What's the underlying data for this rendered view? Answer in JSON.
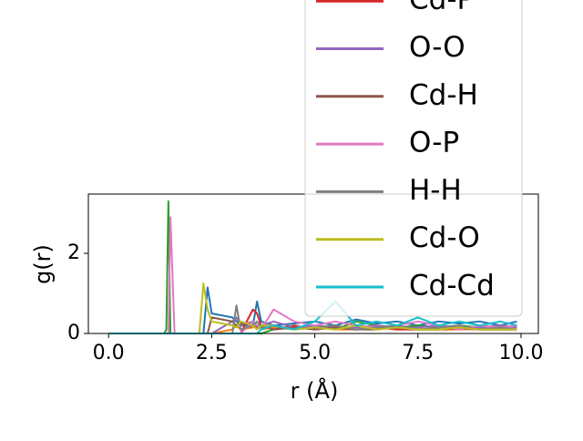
{
  "chart_data": {
    "type": "line",
    "x_label": "r (Å)",
    "y_label": "g(r)",
    "x": [
      0,
      1.3,
      1.35,
      1.4,
      1.45,
      1.5,
      1.6,
      2.1,
      2.2,
      2.3,
      2.4,
      2.5,
      3.0,
      3.1,
      3.2,
      3.5,
      3.6,
      3.7,
      4.0,
      4.5,
      5.0,
      5.5,
      6.0,
      6.5,
      7.0,
      7.5,
      8.0,
      8.5,
      9.0,
      9.5,
      9.9
    ],
    "series": [
      {
        "color": "#1f77b4",
        "values": [
          0,
          0,
          0,
          0,
          0,
          0,
          0,
          0,
          0,
          0,
          1.15,
          0.5,
          0.4,
          0.3,
          0.2,
          0.2,
          0.8,
          0.3,
          0.2,
          0.25,
          0.3,
          0.2,
          0.35,
          0.25,
          0.3,
          0.2,
          0.3,
          0.25,
          0.3,
          0.2,
          0.3
        ]
      },
      {
        "color": "#ff7f0e",
        "values": [
          0,
          0,
          0,
          0,
          0,
          0,
          0,
          0,
          0,
          0,
          0,
          0,
          0.1,
          0.2,
          0.1,
          0.15,
          0.2,
          0.1,
          0.15,
          0.1,
          0.15,
          0.1,
          0.1,
          0.15,
          0.1,
          0.12,
          0.1,
          0.1,
          0.12,
          0.1,
          0.1
        ]
      },
      {
        "color": "#2ca02c",
        "values": [
          0,
          0,
          0,
          0.1,
          3.3,
          0,
          0,
          0,
          0,
          0,
          0,
          0,
          0,
          0,
          0,
          0,
          0,
          0,
          0.1,
          0.15,
          0.2,
          0.1,
          0.3,
          0.2,
          0.15,
          0.2,
          0.15,
          0.2,
          0.15,
          0.2,
          0.15
        ]
      },
      {
        "name": "Cd-P",
        "color": "#d62728",
        "values": [
          0,
          0,
          0,
          0,
          0,
          0,
          0,
          0,
          0,
          0,
          0,
          0,
          0,
          0,
          0,
          0.6,
          0.5,
          0.2,
          0.1,
          0.2,
          0.1,
          0.15,
          0.1,
          0.15,
          0.1,
          0.1,
          0.1,
          0.12,
          0.1,
          0.1,
          0.1
        ]
      },
      {
        "name": "O-O",
        "color": "#9467bd",
        "values": [
          0,
          0,
          0,
          0,
          0,
          0,
          0,
          0,
          0,
          0,
          0,
          0,
          0.3,
          0.4,
          0.2,
          0.3,
          0.2,
          0.2,
          0.3,
          0.15,
          0.2,
          0.15,
          0.15,
          0.2,
          0.15,
          0.15,
          0.2,
          0.15,
          0.15,
          0.2,
          0.15
        ]
      },
      {
        "name": "Cd-H",
        "color": "#8c564b",
        "values": [
          0,
          0,
          0,
          0,
          0,
          0,
          0,
          0,
          0,
          0,
          0,
          0.4,
          0.3,
          0.2,
          0.25,
          0.2,
          0.15,
          0.2,
          0.1,
          0.15,
          0.1,
          0.15,
          0.1,
          0.1,
          0.15,
          0.1,
          0.1,
          0.15,
          0.1,
          0.1,
          0.1
        ]
      },
      {
        "name": "O-P",
        "color": "#e377c2",
        "values": [
          0,
          0,
          0,
          0,
          0,
          2.9,
          0,
          0,
          0,
          0,
          0,
          0,
          0,
          0,
          0,
          0.3,
          0.2,
          0.1,
          0.6,
          0.3,
          0.2,
          0.3,
          0.2,
          0.15,
          0.2,
          0.3,
          0.2,
          0.1,
          0.2,
          0.15,
          0.2
        ]
      },
      {
        "name": "H-H",
        "color": "#7f7f7f",
        "values": [
          0,
          0,
          0,
          0,
          0,
          0,
          0,
          0,
          0,
          0,
          0,
          0,
          0,
          0.7,
          0.1,
          0.2,
          0.3,
          0.15,
          0.2,
          0.1,
          0.15,
          0.2,
          0.1,
          0.15,
          0.2,
          0.1,
          0.15,
          0.2,
          0.1,
          0.15,
          0.1
        ]
      },
      {
        "name": "Cd-O",
        "color": "#bcbd22",
        "values": [
          0,
          0,
          0,
          0,
          0,
          0,
          0,
          0,
          0,
          1.25,
          0.6,
          0.3,
          0.2,
          0.15,
          0.3,
          0.2,
          0.1,
          0.2,
          0.2,
          0.1,
          0.15,
          0.1,
          0.2,
          0.1,
          0.15,
          0.1,
          0.1,
          0.15,
          0.1,
          0.1,
          0.1
        ]
      },
      {
        "name": "Cd-Cd",
        "color": "#17becf",
        "values": [
          0,
          0,
          0,
          0,
          0,
          0,
          0,
          0,
          0,
          0,
          0,
          0,
          0,
          0,
          0,
          0,
          0,
          0.1,
          0.2,
          0.1,
          0.3,
          0.8,
          0.2,
          0.3,
          0.2,
          0.4,
          0.2,
          0.3,
          0.2,
          0.3,
          0.2
        ]
      }
    ],
    "xlim": [
      -0.49,
      10.42
    ],
    "ylim": [
      0,
      3.48
    ],
    "xticks": [
      {
        "value": 0,
        "label": "0.0"
      },
      {
        "value": 2.5,
        "label": "2.5"
      },
      {
        "value": 5,
        "label": "5.0"
      },
      {
        "value": 7.5,
        "label": "7.5"
      },
      {
        "value": 10,
        "label": "10.0"
      }
    ],
    "yticks": [
      0,
      2
    ],
    "grid": false,
    "legend": "upper right"
  }
}
